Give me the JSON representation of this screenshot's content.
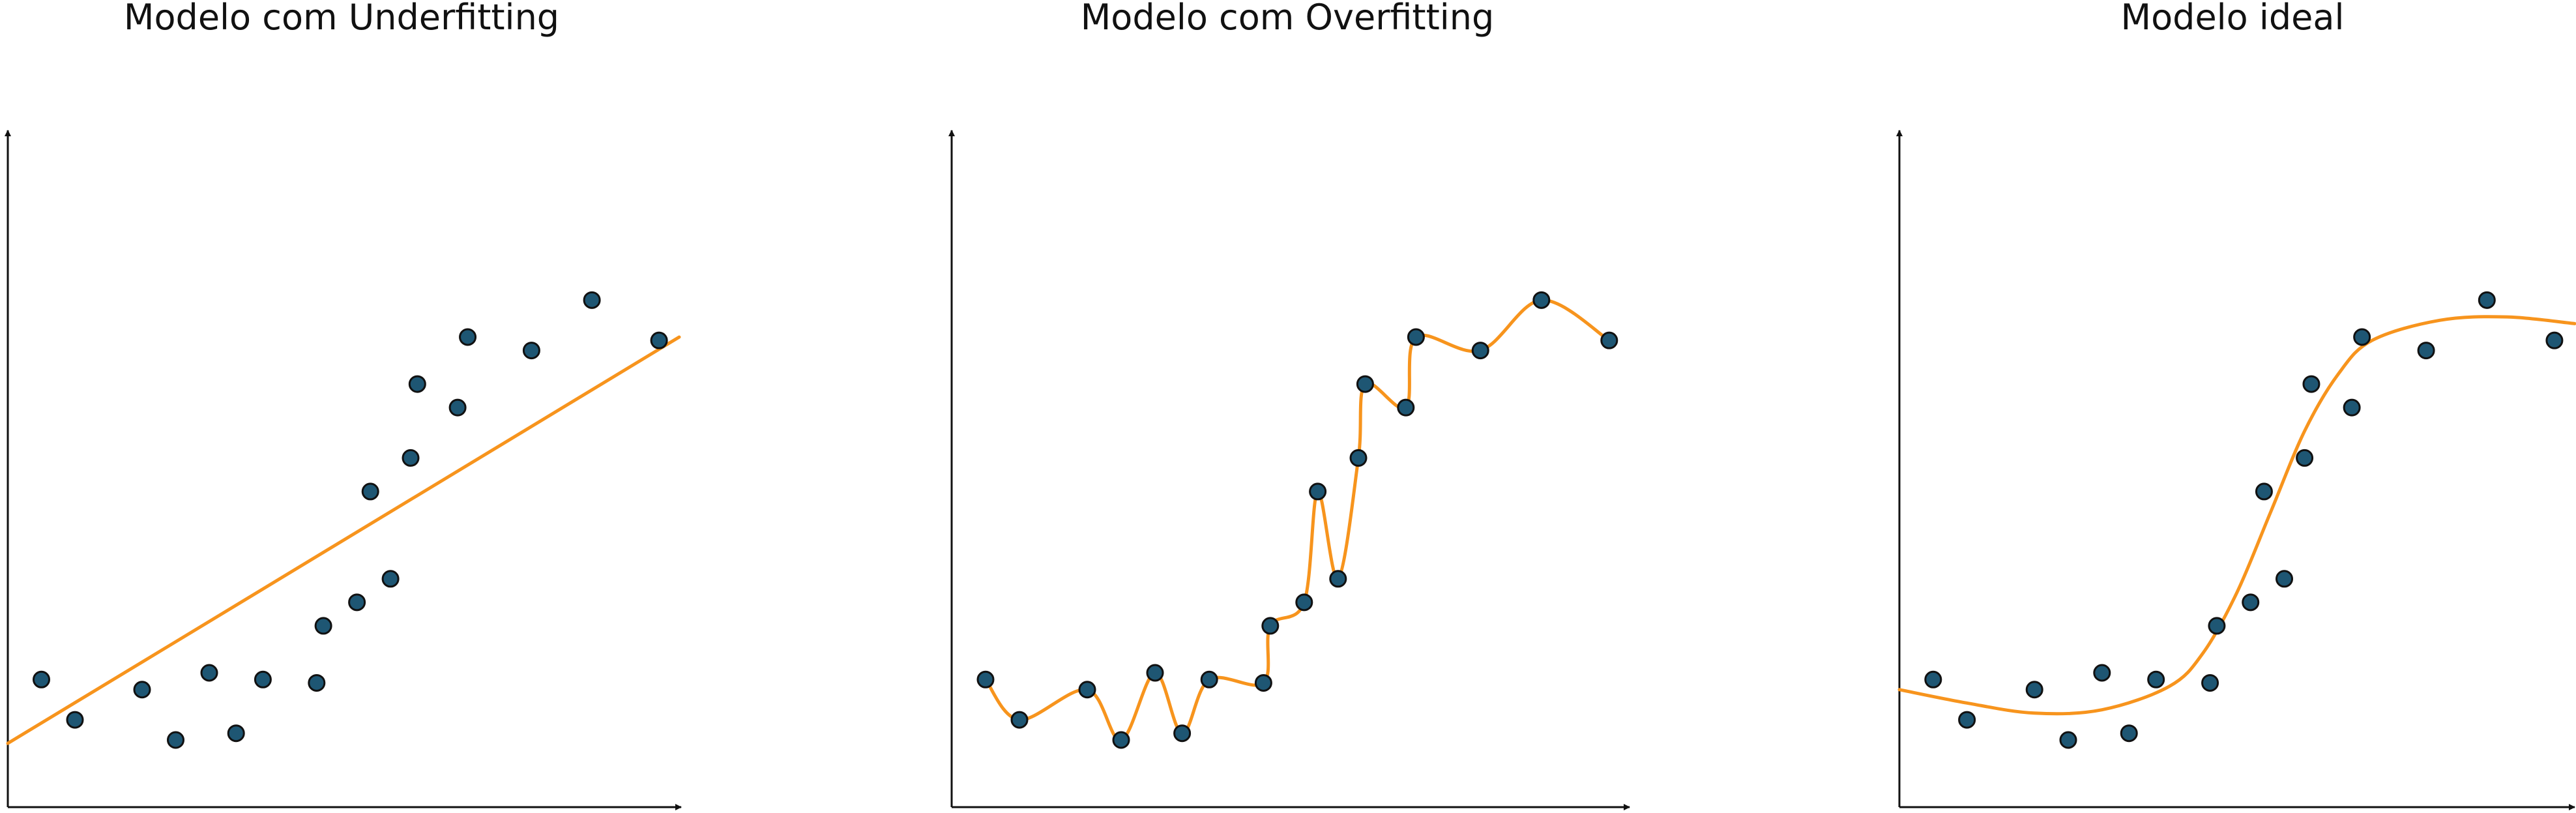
{
  "panels": [
    {
      "title": "Modelo com Underfitting",
      "points": [
        [
          0.5,
          1.9
        ],
        [
          1.0,
          1.3
        ],
        [
          2.0,
          1.75
        ],
        [
          2.5,
          1.0
        ],
        [
          3.0,
          2.0
        ],
        [
          3.4,
          1.1
        ],
        [
          3.8,
          1.9
        ],
        [
          4.6,
          1.85
        ],
        [
          4.7,
          2.7
        ],
        [
          5.2,
          3.05
        ],
        [
          5.4,
          4.7
        ],
        [
          5.7,
          3.4
        ],
        [
          6.0,
          5.2
        ],
        [
          6.1,
          6.3
        ],
        [
          6.7,
          5.95
        ],
        [
          6.85,
          7.0
        ],
        [
          7.8,
          6.8
        ],
        [
          8.7,
          7.55
        ],
        [
          9.7,
          6.95
        ]
      ],
      "fit": {
        "type": "linear",
        "curve": [
          [
            0.0,
            0.95
          ],
          [
            10.0,
            7.0
          ]
        ],
        "color": "#F7941D"
      }
    },
    {
      "title": "Modelo com Overfitting",
      "points": [
        [
          0.5,
          1.9
        ],
        [
          1.0,
          1.3
        ],
        [
          2.0,
          1.75
        ],
        [
          2.5,
          1.0
        ],
        [
          3.0,
          2.0
        ],
        [
          3.4,
          1.1
        ],
        [
          3.8,
          1.9
        ],
        [
          4.6,
          1.85
        ],
        [
          4.7,
          2.7
        ],
        [
          5.2,
          3.05
        ],
        [
          5.4,
          4.7
        ],
        [
          5.7,
          3.4
        ],
        [
          6.0,
          5.2
        ],
        [
          6.1,
          6.3
        ],
        [
          6.7,
          5.95
        ],
        [
          6.85,
          7.0
        ],
        [
          7.8,
          6.8
        ],
        [
          8.7,
          7.55
        ],
        [
          9.7,
          6.95
        ]
      ],
      "fit": {
        "type": "interpolating",
        "curve": [],
        "color": "#F7941D"
      }
    },
    {
      "title": "Modelo ideal",
      "points": [
        [
          0.5,
          1.9
        ],
        [
          1.0,
          1.3
        ],
        [
          2.0,
          1.75
        ],
        [
          2.5,
          1.0
        ],
        [
          3.0,
          2.0
        ],
        [
          3.4,
          1.1
        ],
        [
          3.8,
          1.9
        ],
        [
          4.6,
          1.85
        ],
        [
          4.7,
          2.7
        ],
        [
          5.2,
          3.05
        ],
        [
          5.4,
          4.7
        ],
        [
          5.7,
          3.4
        ],
        [
          6.0,
          5.2
        ],
        [
          6.1,
          6.3
        ],
        [
          6.7,
          5.95
        ],
        [
          6.85,
          7.0
        ],
        [
          7.8,
          6.8
        ],
        [
          8.7,
          7.55
        ],
        [
          9.7,
          6.95
        ]
      ],
      "fit": {
        "type": "smooth",
        "curve": [
          [
            0.0,
            1.75
          ],
          [
            1.0,
            1.55
          ],
          [
            2.0,
            1.4
          ],
          [
            3.0,
            1.45
          ],
          [
            4.0,
            1.8
          ],
          [
            4.5,
            2.3
          ],
          [
            5.0,
            3.2
          ],
          [
            5.5,
            4.4
          ],
          [
            6.0,
            5.6
          ],
          [
            6.5,
            6.45
          ],
          [
            7.0,
            6.95
          ],
          [
            8.0,
            7.25
          ],
          [
            9.0,
            7.3
          ],
          [
            10.0,
            7.2
          ]
        ],
        "color": "#F7941D"
      }
    }
  ],
  "style": {
    "point_fill": "#1E5673",
    "point_stroke": "#111111",
    "axis_color": "#111111"
  },
  "chart_data": [
    {
      "type": "scatter",
      "title": "Modelo com Underfitting",
      "x": [
        0.5,
        1.0,
        2.0,
        2.5,
        3.0,
        3.4,
        3.8,
        4.6,
        4.7,
        5.2,
        5.4,
        5.7,
        6.0,
        6.1,
        6.7,
        6.85,
        7.8,
        8.7,
        9.7
      ],
      "y": [
        1.9,
        1.3,
        1.75,
        1.0,
        2.0,
        1.1,
        1.9,
        1.85,
        2.7,
        3.05,
        4.7,
        3.4,
        5.2,
        6.3,
        5.95,
        7.0,
        6.8,
        7.55,
        6.95
      ],
      "xlim": [
        0,
        10
      ],
      "ylim": [
        0,
        10
      ],
      "grid": false
    },
    {
      "type": "scatter",
      "title": "Modelo com Overfitting",
      "x": [
        0.5,
        1.0,
        2.0,
        2.5,
        3.0,
        3.4,
        3.8,
        4.6,
        4.7,
        5.2,
        5.4,
        5.7,
        6.0,
        6.1,
        6.7,
        6.85,
        7.8,
        8.7,
        9.7
      ],
      "y": [
        1.9,
        1.3,
        1.75,
        1.0,
        2.0,
        1.1,
        1.9,
        1.85,
        2.7,
        3.05,
        4.7,
        3.4,
        5.2,
        6.3,
        5.95,
        7.0,
        6.8,
        7.55,
        6.95
      ],
      "xlim": [
        0,
        10
      ],
      "ylim": [
        0,
        10
      ],
      "grid": false
    },
    {
      "type": "scatter",
      "title": "Modelo ideal",
      "x": [
        0.5,
        1.0,
        2.0,
        2.5,
        3.0,
        3.4,
        3.8,
        4.6,
        4.7,
        5.2,
        5.4,
        5.7,
        6.0,
        6.1,
        6.7,
        6.85,
        7.8,
        8.7,
        9.7
      ],
      "y": [
        1.9,
        1.3,
        1.75,
        1.0,
        2.0,
        1.1,
        1.9,
        1.85,
        2.7,
        3.05,
        4.7,
        3.4,
        5.2,
        6.3,
        5.95,
        7.0,
        6.8,
        7.55,
        6.95
      ],
      "xlim": [
        0,
        10
      ],
      "ylim": [
        0,
        10
      ],
      "grid": false
    }
  ]
}
